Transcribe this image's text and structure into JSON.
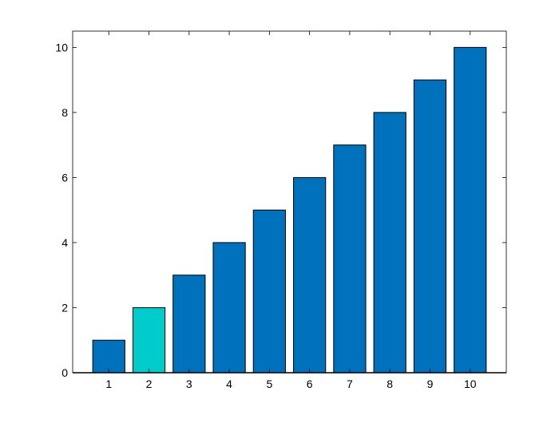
{
  "chart_data": {
    "type": "bar",
    "title": "",
    "xlabel": "",
    "ylabel": "",
    "categories": [
      "1",
      "2",
      "3",
      "4",
      "5",
      "6",
      "7",
      "8",
      "9",
      "10"
    ],
    "values": [
      1,
      2,
      3,
      4,
      5,
      6,
      7,
      8,
      9,
      10
    ],
    "xlim": [
      0.1,
      10.9
    ],
    "ylim": [
      0,
      10.5
    ],
    "yticks": [
      0,
      2,
      4,
      6,
      8,
      10
    ],
    "grid": false,
    "legend": "none",
    "colors": {
      "bar": "#0072BD",
      "highlight_bar": "#00CCCC",
      "bar_edge": "#000000",
      "axis": "#000000",
      "background": "#ffffff"
    },
    "highlighted_category": "2"
  }
}
